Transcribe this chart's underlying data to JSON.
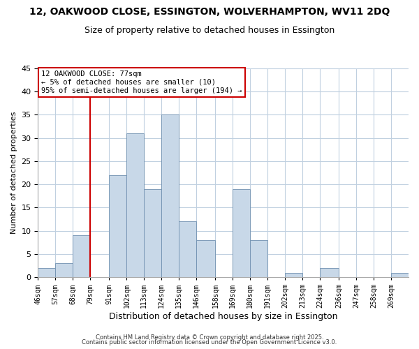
{
  "title1": "12, OAKWOOD CLOSE, ESSINGTON, WOLVERHAMPTON, WV11 2DQ",
  "title2": "Size of property relative to detached houses in Essington",
  "xlabel": "Distribution of detached houses by size in Essington",
  "ylabel": "Number of detached properties",
  "bin_edges": [
    46,
    57,
    68,
    79,
    91,
    102,
    113,
    124,
    135,
    146,
    158,
    169,
    180,
    191,
    202,
    213,
    224,
    236,
    247,
    258,
    269,
    280
  ],
  "bin_labels": [
    "46sqm",
    "57sqm",
    "68sqm",
    "79sqm",
    "91sqm",
    "102sqm",
    "113sqm",
    "124sqm",
    "135sqm",
    "146sqm",
    "158sqm",
    "169sqm",
    "180sqm",
    "191sqm",
    "202sqm",
    "213sqm",
    "224sqm",
    "236sqm",
    "247sqm",
    "258sqm",
    "269sqm"
  ],
  "counts": [
    2,
    3,
    9,
    0,
    22,
    31,
    19,
    35,
    12,
    8,
    0,
    19,
    8,
    0,
    1,
    0,
    2,
    0,
    0,
    0,
    1
  ],
  "bar_color": "#c8d8e8",
  "bar_edge_color": "#7090b0",
  "vline_x": 79,
  "vline_color": "#cc0000",
  "ylim": [
    0,
    45
  ],
  "yticks": [
    0,
    5,
    10,
    15,
    20,
    25,
    30,
    35,
    40,
    45
  ],
  "annotation_text": "12 OAKWOOD CLOSE: 77sqm\n← 5% of detached houses are smaller (10)\n95% of semi-detached houses are larger (194) →",
  "annotation_box_facecolor": "#ffffff",
  "annotation_box_edgecolor": "#cc0000",
  "footer1": "Contains HM Land Registry data © Crown copyright and database right 2025.",
  "footer2": "Contains public sector information licensed under the Open Government Licence v3.0.",
  "bg_color": "#ffffff",
  "grid_color": "#c0d0e0",
  "title_fontsize": 10,
  "subtitle_fontsize": 9,
  "ylabel_fontsize": 8,
  "xlabel_fontsize": 9,
  "tick_fontsize": 7,
  "annot_fontsize": 7.5,
  "footer_fontsize": 6
}
